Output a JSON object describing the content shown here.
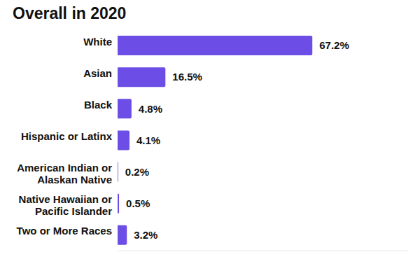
{
  "chart_data": {
    "type": "bar",
    "title": "Overall in 2020",
    "orientation": "horizontal",
    "categories": [
      "White",
      "Asian",
      "Black",
      "Hispanic or Latinx",
      "American Indian or Alaskan Native",
      "Native Hawaiian or Pacific Islander",
      "Two or More Races"
    ],
    "values": [
      67.2,
      16.5,
      4.8,
      4.1,
      0.2,
      0.5,
      3.2
    ],
    "value_labels": [
      "67.2%",
      "16.5%",
      "4.8%",
      "4.1%",
      "0.2%",
      "0.5%",
      "3.2%"
    ],
    "color": "#6c4de6",
    "xlim": [
      0,
      100
    ],
    "data_labels": true,
    "tick_labels": "y",
    "grid": false
  }
}
